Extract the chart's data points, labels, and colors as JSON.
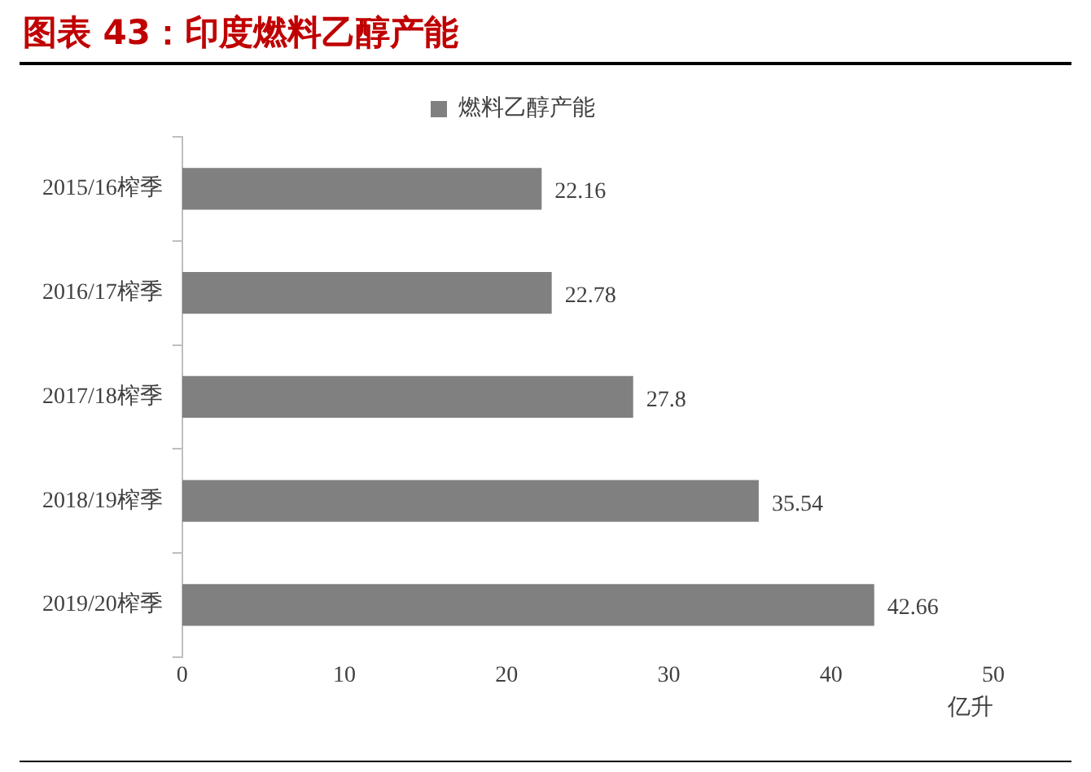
{
  "chart_data": {
    "type": "bar",
    "orientation": "horizontal",
    "title": "图表 43：印度燃料乙醇产能",
    "xlabel": "亿升",
    "categories": [
      "2015/16榨季",
      "2016/17榨季",
      "2017/18榨季",
      "2018/19榨季",
      "2019/20榨季"
    ],
    "series": [
      {
        "name": "燃料乙醇产能",
        "color": "#808080",
        "values": [
          22.16,
          22.78,
          27.8,
          35.54,
          42.66
        ]
      }
    ],
    "xlim": [
      0,
      50
    ],
    "xticks": [
      0,
      10,
      20,
      30,
      40,
      50
    ],
    "data_labels": true,
    "legend": "top",
    "grid": false
  }
}
